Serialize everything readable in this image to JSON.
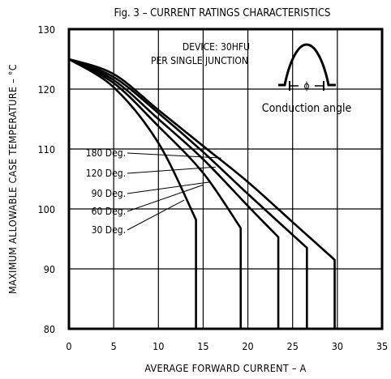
{
  "chart_data": {
    "type": "line",
    "title": "Fig. 3 – CURRENT RATINGS CHARACTERISTICS",
    "xlabel": "AVERAGE FORWARD CURRENT – A",
    "ylabel": "MAXIMUM ALLOWABLE CASE TEMPERATURE – °C",
    "xlim": [
      0,
      35
    ],
    "ylim": [
      80,
      130
    ],
    "x_ticks": [
      "0",
      "5",
      "10",
      "15",
      "20",
      "25",
      "30",
      "35"
    ],
    "y_ticks": [
      "80",
      "90",
      "100",
      "110",
      "120",
      "130"
    ],
    "grid": true,
    "annotations": {
      "device_line1": "DEVICE: 30HFU",
      "device_line2": "PER SINGLE JUNCTION",
      "conduction_label": "Conduction angle",
      "phi_symbol": "ϕ"
    },
    "series": [
      {
        "name": "180 Deg.",
        "x": [
          0,
          5,
          10,
          15,
          20,
          25,
          29.7,
          29.7
        ],
        "y": [
          125,
          122.5,
          116.5,
          110.5,
          104.5,
          97.8,
          91.5,
          80
        ]
      },
      {
        "name": "120 Deg.",
        "x": [
          0,
          5,
          10,
          15,
          20,
          26.6,
          26.6
        ],
        "y": [
          125,
          122,
          116.0,
          109.5,
          102.5,
          93.5,
          80
        ]
      },
      {
        "name": "90 Deg.",
        "x": [
          0,
          5,
          10,
          15,
          20,
          23.4,
          23.4
        ],
        "y": [
          125,
          121.5,
          115.0,
          108.3,
          100.5,
          95.3,
          80
        ]
      },
      {
        "name": "60 Deg.",
        "x": [
          0,
          5,
          10,
          15,
          19.2,
          19.2
        ],
        "y": [
          125,
          121.0,
          113.8,
          106.0,
          96.8,
          80
        ]
      },
      {
        "name": "30 Deg.",
        "x": [
          0,
          5,
          10,
          14.2,
          14.2
        ],
        "y": [
          125,
          120.3,
          111.0,
          98.2,
          80
        ]
      }
    ],
    "colors": {
      "line": "#000000",
      "background": "#ffffff"
    }
  }
}
